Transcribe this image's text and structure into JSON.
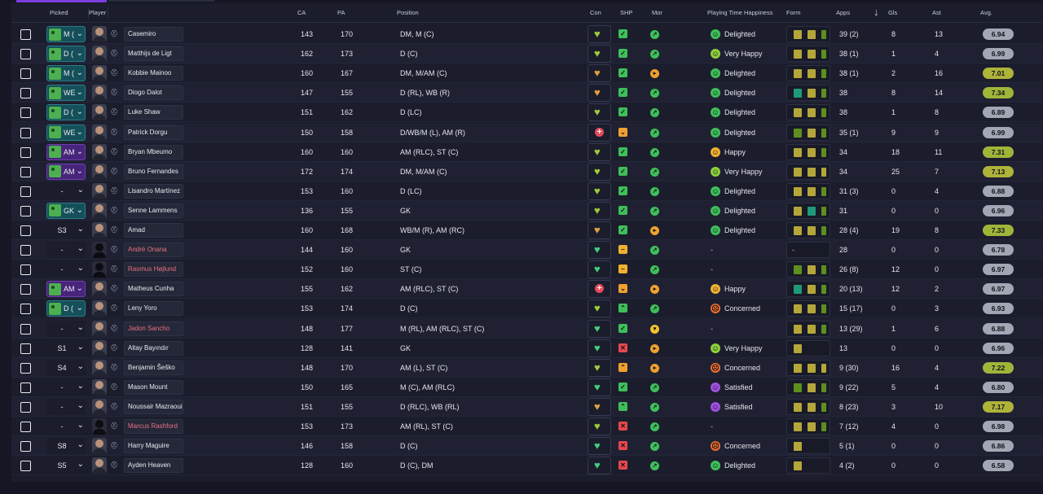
{
  "columns": {
    "picked": "Picked",
    "player": "Player",
    "ca": "CA",
    "pa": "PA",
    "position": "Position",
    "con": "Con",
    "shp": "SHP",
    "mor": "Mor",
    "happiness": "Playing Time Happiness",
    "form": "Form",
    "apps": "Apps",
    "sort_icon": "arrow-down-icon",
    "gls": "Gls",
    "ast": "Ast",
    "avg": "Avg."
  },
  "colors": {
    "accent": "#7b3fe0",
    "form_olive": "#b5a63a",
    "form_green": "#5e8f1e",
    "form_teal": "#1e9a78",
    "green_status": "#3fbf5a",
    "orange_status": "#f0a030",
    "red_status": "#e5484d"
  },
  "players": [
    {
      "picked": "M (",
      "pick_style": "teal",
      "name": "Casemiro",
      "injured": false,
      "silhouette": false,
      "ca": "143",
      "pa": "170",
      "position": "DM, M (C)",
      "con": "green-yellow",
      "shp": "check",
      "mor": "good",
      "happiness": "Delighted",
      "happy": "delighted",
      "form": [
        "o",
        "o",
        "g"
      ],
      "apps": "39 (2)",
      "gls": "8",
      "ast": "13",
      "avg": "6.94",
      "avg_color": "#a3a7b5"
    },
    {
      "picked": "D (",
      "pick_style": "teal",
      "name": "Matthijs de Ligt",
      "injured": false,
      "silhouette": false,
      "ca": "162",
      "pa": "173",
      "position": "D (C)",
      "con": "green-yellow",
      "shp": "check",
      "mor": "good",
      "happiness": "Very Happy",
      "happy": "veryhappy",
      "form": [
        "o",
        "o",
        "g"
      ],
      "apps": "38 (1)",
      "gls": "1",
      "ast": "4",
      "avg": "6.99",
      "avg_color": "#a3a7b5"
    },
    {
      "picked": "M (",
      "pick_style": "teal",
      "name": "Kobbie Mainoo",
      "injured": false,
      "silhouette": false,
      "ca": "160",
      "pa": "167",
      "position": "DM, M/AM (C)",
      "con": "orange-yellow",
      "shp": "check",
      "mor": "okay",
      "happiness": "Delighted",
      "happy": "delighted",
      "form": [
        "o",
        "o",
        "g"
      ],
      "apps": "38 (1)",
      "gls": "2",
      "ast": "16",
      "avg": "7.01",
      "avg_color": "#aeb33a"
    },
    {
      "picked": "WE",
      "pick_style": "teal",
      "name": "Diogo Dalot",
      "injured": false,
      "silhouette": false,
      "ca": "147",
      "pa": "155",
      "position": "D (RL), WB (R)",
      "con": "orange-yellow",
      "shp": "check",
      "mor": "good",
      "happiness": "Delighted",
      "happy": "delighted",
      "form": [
        "t",
        "o",
        "g"
      ],
      "apps": "38",
      "gls": "8",
      "ast": "14",
      "avg": "7.34",
      "avg_color": "#9fb53a"
    },
    {
      "picked": "D (",
      "pick_style": "teal",
      "name": "Luke Shaw",
      "injured": false,
      "silhouette": false,
      "ca": "151",
      "pa": "162",
      "position": "D (LC)",
      "con": "green-yellow",
      "shp": "check",
      "mor": "good",
      "happiness": "Delighted",
      "happy": "delighted",
      "form": [
        "o",
        "o",
        "g"
      ],
      "apps": "38",
      "gls": "1",
      "ast": "8",
      "avg": "6.89",
      "avg_color": "#a3a7b5"
    },
    {
      "picked": "WE",
      "pick_style": "teal",
      "name": "Patrick Dorgu",
      "injured": false,
      "silhouette": false,
      "ca": "150",
      "pa": "158",
      "position": "D/WB/M (L), AM (R)",
      "con": "red-plus",
      "shp": "orange-down",
      "mor": "good",
      "happiness": "Delighted",
      "happy": "delighted",
      "form": [
        "g",
        "o",
        "g"
      ],
      "apps": "35 (1)",
      "gls": "9",
      "ast": "9",
      "avg": "6.99",
      "avg_color": "#a3a7b5"
    },
    {
      "picked": "AM",
      "pick_style": "purple",
      "name": "Bryan Mbeumo",
      "injured": false,
      "silhouette": false,
      "ca": "160",
      "pa": "160",
      "position": "AM (RLC), ST (C)",
      "con": "green-yellow",
      "shp": "check",
      "mor": "good",
      "happiness": "Happy",
      "happy": "happy",
      "form": [
        "o",
        "o",
        "g"
      ],
      "apps": "34",
      "gls": "18",
      "ast": "11",
      "avg": "7.31",
      "avg_color": "#9fb53a"
    },
    {
      "picked": "AM",
      "pick_style": "purple",
      "name": "Bruno Fernandes",
      "injured": false,
      "silhouette": false,
      "ca": "172",
      "pa": "174",
      "position": "DM, M/AM (C)",
      "con": "green-yellow",
      "shp": "check",
      "mor": "good",
      "happiness": "Very Happy",
      "happy": "veryhappy",
      "form": [
        "o",
        "o",
        "o"
      ],
      "apps": "34",
      "gls": "25",
      "ast": "7",
      "avg": "7.13",
      "avg_color": "#aeb33a"
    },
    {
      "picked": "-",
      "pick_style": "plain",
      "name": "Lisandro Martínez",
      "injured": false,
      "silhouette": false,
      "ca": "153",
      "pa": "160",
      "position": "D (LC)",
      "con": "green-yellow",
      "shp": "check",
      "mor": "good",
      "happiness": "Delighted",
      "happy": "delighted",
      "form": [
        "o",
        "o",
        "g"
      ],
      "apps": "31 (3)",
      "gls": "0",
      "ast": "4",
      "avg": "6.88",
      "avg_color": "#a3a7b5"
    },
    {
      "picked": "GK",
      "pick_style": "teal",
      "name": "Senne Lammens",
      "injured": false,
      "silhouette": false,
      "ca": "136",
      "pa": "155",
      "position": "GK",
      "con": "green-yellow",
      "shp": "check",
      "mor": "good",
      "happiness": "Delighted",
      "happy": "delighted",
      "form": [
        "o",
        "t",
        "g"
      ],
      "apps": "31",
      "gls": "0",
      "ast": "0",
      "avg": "6.96",
      "avg_color": "#a3a7b5"
    },
    {
      "picked": "S3",
      "pick_style": "plain",
      "name": "Amad",
      "injured": false,
      "silhouette": false,
      "ca": "160",
      "pa": "168",
      "position": "WB/M (R), AM (RC)",
      "con": "orange-yellow",
      "shp": "check",
      "mor": "okay",
      "happiness": "Delighted",
      "happy": "delighted",
      "form": [
        "o",
        "o",
        "g"
      ],
      "apps": "28 (4)",
      "gls": "19",
      "ast": "8",
      "avg": "7.33",
      "avg_color": "#9fb53a"
    },
    {
      "picked": "-",
      "pick_style": "plain",
      "name": "André Onana",
      "injured": true,
      "silhouette": true,
      "ca": "144",
      "pa": "160",
      "position": "GK",
      "con": "green-heart",
      "shp": "orange-minus",
      "mor": "good",
      "happiness": "-",
      "happy": "none",
      "form": [],
      "form_dash": "-",
      "apps": "28",
      "gls": "0",
      "ast": "0",
      "avg": "6.78",
      "avg_color": "#a3a7b5"
    },
    {
      "picked": "-",
      "pick_style": "plain",
      "name": "Rasmus Højlund",
      "injured": true,
      "silhouette": true,
      "ca": "152",
      "pa": "160",
      "position": "ST (C)",
      "con": "green-heart",
      "shp": "orange-minus",
      "mor": "good",
      "happiness": "-",
      "happy": "none",
      "form": [
        "g",
        "o",
        "g"
      ],
      "apps": "26 (8)",
      "gls": "12",
      "ast": "0",
      "avg": "6.97",
      "avg_color": "#a3a7b5"
    },
    {
      "picked": "AM",
      "pick_style": "purple",
      "name": "Matheus Cunha",
      "injured": false,
      "silhouette": false,
      "ca": "155",
      "pa": "162",
      "position": "AM (RLC), ST (C)",
      "con": "red-plus",
      "shp": "orange-down",
      "mor": "okay",
      "happiness": "Happy",
      "happy": "happy",
      "form": [
        "t",
        "o",
        "g"
      ],
      "apps": "20 (13)",
      "gls": "12",
      "ast": "2",
      "avg": "6.97",
      "avg_color": "#a3a7b5"
    },
    {
      "picked": "D (",
      "pick_style": "teal",
      "name": "Leny Yoro",
      "injured": false,
      "silhouette": false,
      "ca": "153",
      "pa": "174",
      "position": "D (C)",
      "con": "green-yellow",
      "shp": "up",
      "mor": "good",
      "happiness": "Concerned",
      "happy": "concerned",
      "form": [
        "o",
        "o",
        "g"
      ],
      "apps": "15 (17)",
      "gls": "0",
      "ast": "3",
      "avg": "6.93",
      "avg_color": "#a3a7b5"
    },
    {
      "picked": "-",
      "pick_style": "plain",
      "name": "Jadon Sancho",
      "injured": true,
      "silhouette": false,
      "ca": "148",
      "pa": "177",
      "position": "M (RL), AM (RLC), ST (C)",
      "con": "green-heart",
      "shp": "check",
      "mor": "yellow",
      "happiness": "-",
      "happy": "none",
      "form": [
        "o",
        "o",
        "g"
      ],
      "apps": "13 (29)",
      "gls": "1",
      "ast": "6",
      "avg": "6.88",
      "avg_color": "#a3a7b5"
    },
    {
      "picked": "S1",
      "pick_style": "plain",
      "name": "Altay Bayındır",
      "injured": false,
      "silhouette": false,
      "ca": "128",
      "pa": "141",
      "position": "GK",
      "con": "green-heart",
      "shp": "x",
      "mor": "okay",
      "happiness": "Very Happy",
      "happy": "veryhappy",
      "form": [
        "o"
      ],
      "apps": "13",
      "gls": "0",
      "ast": "0",
      "avg": "6.96",
      "avg_color": "#a3a7b5"
    },
    {
      "picked": "S4",
      "pick_style": "plain",
      "name": "Benjamin Šeško",
      "injured": false,
      "silhouette": false,
      "ca": "148",
      "pa": "170",
      "position": "AM (L), ST (C)",
      "con": "green-yellow",
      "shp": "orange-up",
      "mor": "okay",
      "happiness": "Concerned",
      "happy": "concerned",
      "form": [
        "o",
        "o",
        "o"
      ],
      "apps": "9 (30)",
      "gls": "16",
      "ast": "4",
      "avg": "7.22",
      "avg_color": "#9fb53a"
    },
    {
      "picked": "-",
      "pick_style": "plain",
      "name": "Mason Mount",
      "injured": false,
      "silhouette": false,
      "ca": "150",
      "pa": "165",
      "position": "M (C), AM (RLC)",
      "con": "green-heart",
      "shp": "check",
      "mor": "good",
      "happiness": "Satisfied",
      "happy": "satisfied",
      "form": [
        "g",
        "o",
        "g"
      ],
      "apps": "9 (22)",
      "gls": "5",
      "ast": "4",
      "avg": "6.80",
      "avg_color": "#a3a7b5"
    },
    {
      "picked": "-",
      "pick_style": "plain",
      "name": "Noussair Mazraoui",
      "injured": false,
      "silhouette": false,
      "ca": "151",
      "pa": "155",
      "position": "D (RLC), WB (RL)",
      "con": "orange-yellow",
      "shp": "up",
      "mor": "good",
      "happiness": "Satisfied",
      "happy": "satisfied",
      "form": [
        "o",
        "o",
        "g"
      ],
      "apps": "8 (23)",
      "gls": "3",
      "ast": "10",
      "avg": "7.17",
      "avg_color": "#aeb33a"
    },
    {
      "picked": "-",
      "pick_style": "plain",
      "name": "Marcus Rashford",
      "injured": true,
      "silhouette": true,
      "ca": "153",
      "pa": "173",
      "position": "AM (RL), ST (C)",
      "con": "green-yellow",
      "shp": "x",
      "mor": "good",
      "happiness": "-",
      "happy": "none",
      "form": [
        "o",
        "o",
        "g"
      ],
      "apps": "7 (12)",
      "gls": "4",
      "ast": "0",
      "avg": "6.98",
      "avg_color": "#a3a7b5"
    },
    {
      "picked": "S8",
      "pick_style": "plain",
      "name": "Harry Maguire",
      "injured": false,
      "silhouette": false,
      "ca": "146",
      "pa": "158",
      "position": "D (C)",
      "con": "green-heart",
      "shp": "x",
      "mor": "good",
      "happiness": "Concerned",
      "happy": "concerned",
      "form": [
        "o"
      ],
      "apps": "5 (1)",
      "gls": "0",
      "ast": "0",
      "avg": "6.86",
      "avg_color": "#a3a7b5"
    },
    {
      "picked": "S5",
      "pick_style": "plain",
      "name": "Ayden Heaven",
      "injured": false,
      "silhouette": false,
      "ca": "128",
      "pa": "160",
      "position": "D (C), DM",
      "con": "green-heart",
      "shp": "x",
      "mor": "good",
      "happiness": "Delighted",
      "happy": "delighted",
      "form": [
        "o"
      ],
      "apps": "4 (2)",
      "gls": "0",
      "ast": "0",
      "avg": "6.58",
      "avg_color": "#a3a7b5"
    }
  ]
}
